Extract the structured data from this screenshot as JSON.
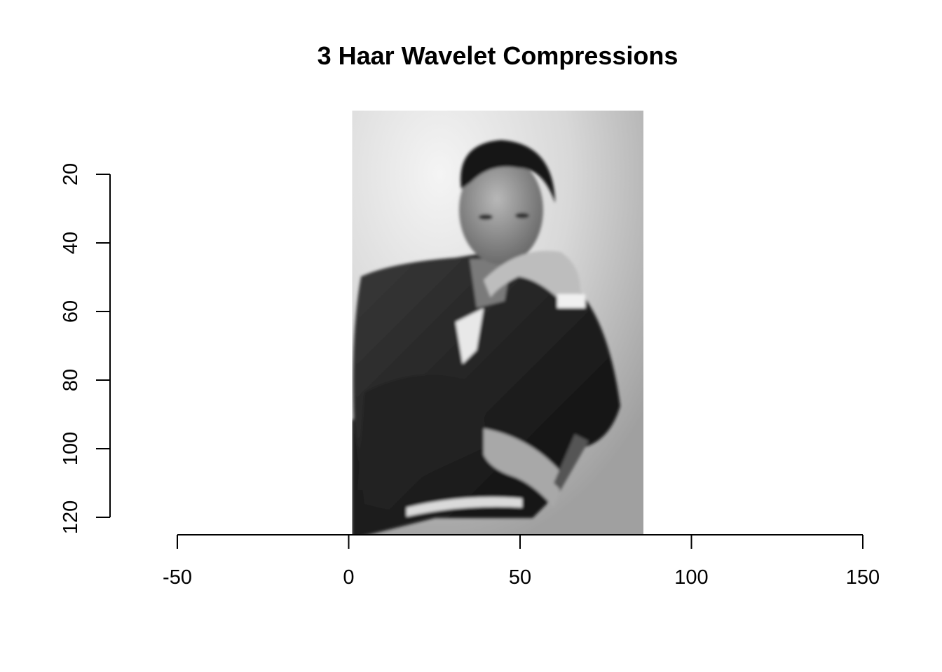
{
  "chart_data": {
    "type": "heatmap",
    "title": "3 Haar Wavelet Compressions",
    "xlabel": "",
    "ylabel": "",
    "x_ticks": [
      -50,
      0,
      50,
      100,
      150
    ],
    "y_ticks": [
      20,
      40,
      60,
      80,
      100,
      120
    ],
    "x_range": [
      -50,
      150
    ],
    "y_range": [
      20,
      120
    ],
    "y_reversed": true,
    "image": {
      "description_type": "grayscale photograph",
      "x_extent": [
        1,
        86
      ],
      "y_extent": [
        1,
        125
      ]
    },
    "colors": {
      "foreground": "#000000",
      "background": "#ffffff"
    }
  }
}
